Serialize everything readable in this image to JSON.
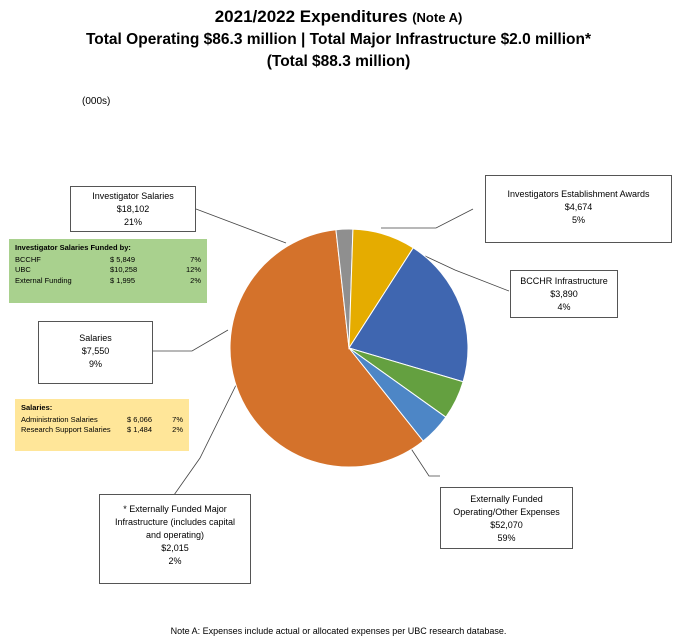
{
  "title": {
    "line1": "2021/2022 Expenditures",
    "line1_note": "(Note A)",
    "line2": "Total Operating $86.3 million | Total Major Infrastructure $2.0 million*",
    "line3": "(Total $88.3 million)"
  },
  "units_label": "(000s)",
  "footnote": "Note A:  Expenses include actual or allocated expenses per UBC research database.",
  "chart_data": {
    "type": "pie",
    "slices": [
      {
        "label": "Externally Funded Operating/Other Expenses",
        "value": 52070,
        "percent": "59%",
        "color": "#d4722b"
      },
      {
        "label": "* Externally Funded Major Infrastructure (includes capital and operating)",
        "value": 2015,
        "percent": "2%",
        "color": "#8f8f8f"
      },
      {
        "label": "Salaries",
        "value": 7550,
        "percent": "9%",
        "color": "#e5ac00"
      },
      {
        "label": "Investigator Salaries",
        "value": 18102,
        "percent": "21%",
        "color": "#3f66b0"
      },
      {
        "label": "Investigators Establishment Awards",
        "value": 4674,
        "percent": "5%",
        "color": "#64a040"
      },
      {
        "label": "BCCHR Infrastructure",
        "value": 3890,
        "percent": "4%",
        "color": "#4d86c6"
      }
    ]
  },
  "callouts": {
    "investigator_salaries": {
      "lines": [
        "Investigator Salaries",
        "$18,102",
        "21%"
      ]
    },
    "establishment_awards": {
      "lines": [
        "Investigators Establishment Awards",
        "$4,674",
        "5%"
      ]
    },
    "bcchr": {
      "lines": [
        "BCCHR Infrastructure",
        "$3,890",
        "4%"
      ]
    },
    "salaries": {
      "lines": [
        "Salaries",
        "$7,550",
        "9%"
      ]
    },
    "major_infra": {
      "lines": [
        "* Externally Funded Major",
        "Infrastructure (includes capital",
        "and operating)",
        "$2,015",
        "2%"
      ]
    },
    "operating": {
      "lines": [
        "Externally Funded",
        "Operating/Other Expenses",
        "$52,070",
        "59%"
      ]
    }
  },
  "investigator_breakdown": {
    "heading": "Investigator Salaries Funded by:",
    "rows": [
      {
        "name": "BCCHF",
        "amount": "$  5,849",
        "pct": "7%"
      },
      {
        "name": "UBC",
        "amount": "$10,258",
        "pct": "12%"
      },
      {
        "name": "External Funding",
        "amount": "$  1,995",
        "pct": "2%"
      }
    ]
  },
  "salaries_breakdown": {
    "heading": "Salaries:",
    "rows": [
      {
        "name": "Administration Salaries",
        "amount": "$  6,066",
        "pct": "7%"
      },
      {
        "name": "Research Support Salaries",
        "amount": "$  1,484",
        "pct": "2%"
      }
    ]
  }
}
